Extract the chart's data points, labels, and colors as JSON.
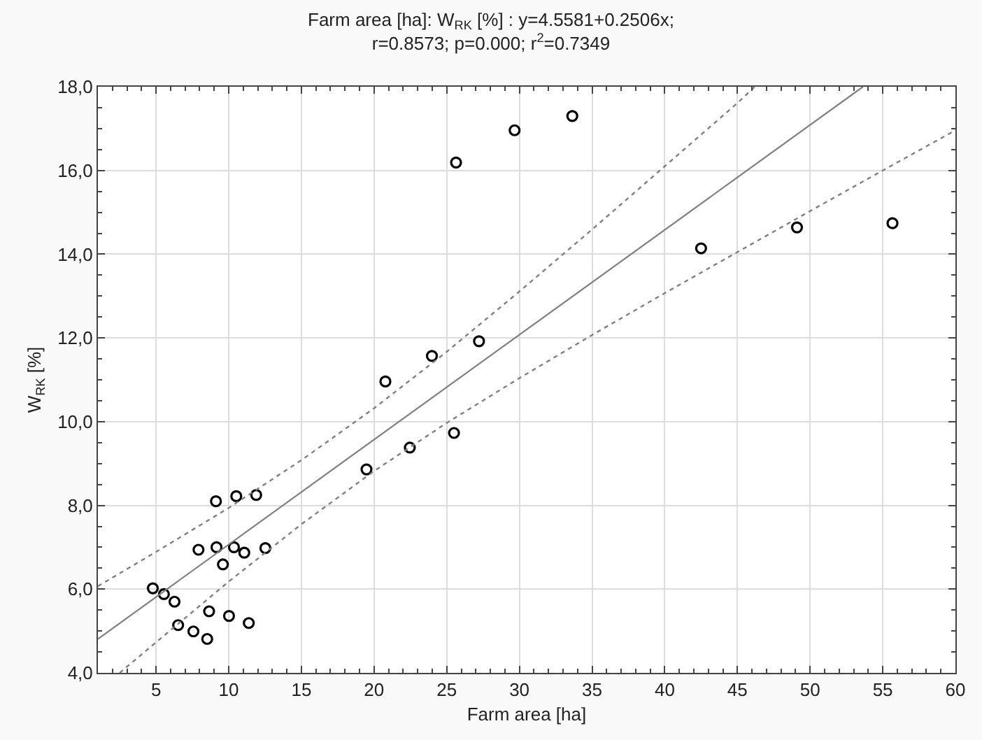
{
  "chart_data": {
    "type": "scatter",
    "title": "Farm area [ha]: W$_{RK}$ [%] : y=4.5581+0.2506x;\nr=0.8573; p=0.000; r$^{2}$=0.7349",
    "xlabel": "Farm area [ha]",
    "ylabel": "W$_{RK}$ [%]",
    "xlim": [
      1,
      60
    ],
    "xticks": [
      5,
      10,
      15,
      20,
      25,
      30,
      35,
      40,
      45,
      50,
      55,
      60
    ],
    "ylim": [
      4,
      18
    ],
    "yticks": [
      {
        "value": 4,
        "label": "4,0"
      },
      {
        "value": 6,
        "label": "6,0"
      },
      {
        "value": 8,
        "label": "8,0"
      },
      {
        "value": 10,
        "label": "10,0"
      },
      {
        "value": 12,
        "label": "12,0"
      },
      {
        "value": 14,
        "label": "14,0"
      },
      {
        "value": 16,
        "label": "16,0"
      },
      {
        "value": 18,
        "label": "18,0"
      }
    ],
    "grid": true,
    "series": [
      {
        "marker": "circle",
        "color": "#000000",
        "x": [
          4.78,
          5.54,
          6.27,
          6.52,
          7.57,
          8.52,
          8.65,
          10.02,
          11.38,
          7.92,
          9.16,
          9.6,
          10.36,
          11.07,
          12.52,
          9.12,
          10.52,
          11.89,
          19.48,
          22.46,
          25.5,
          20.78,
          23.98,
          27.22,
          25.64,
          29.67,
          33.64,
          42.5,
          49.1,
          55.67
        ],
        "values": [
          6.02,
          5.88,
          5.7,
          5.14,
          4.99,
          4.81,
          5.47,
          5.36,
          5.19,
          6.94,
          7.0,
          6.59,
          7.0,
          6.87,
          6.98,
          8.1,
          8.22,
          8.25,
          8.86,
          9.38,
          9.73,
          10.96,
          11.57,
          11.92,
          16.19,
          16.96,
          17.3,
          14.14,
          14.64,
          14.74
        ]
      },
      {
        "type": "line",
        "marker": "none",
        "line_style": "solid",
        "color": "#808080",
        "x": [
          1,
          53.64
        ],
        "values": [
          4.81,
          18.0
        ]
      },
      {
        "type": "line",
        "marker": "none",
        "line_style": "dotted",
        "color": "#808080",
        "x": [
          1,
          3,
          5,
          10,
          15,
          20,
          25,
          30,
          35,
          40,
          45,
          46.2
        ],
        "values": [
          6.07,
          6.48,
          6.89,
          7.94,
          9.08,
          10.32,
          11.67,
          13.11,
          14.59,
          16.1,
          17.61,
          18.0
        ]
      },
      {
        "type": "line",
        "marker": "none",
        "line_style": "dotted",
        "color": "#808080",
        "x": [
          2.5,
          5,
          10,
          15,
          20,
          25,
          30,
          35,
          40,
          45,
          50,
          55,
          60
        ],
        "values": [
          4.0,
          4.73,
          6.18,
          7.55,
          8.82,
          9.97,
          11.04,
          12.07,
          13.07,
          14.05,
          15.03,
          16.0,
          16.96
        ]
      }
    ]
  }
}
